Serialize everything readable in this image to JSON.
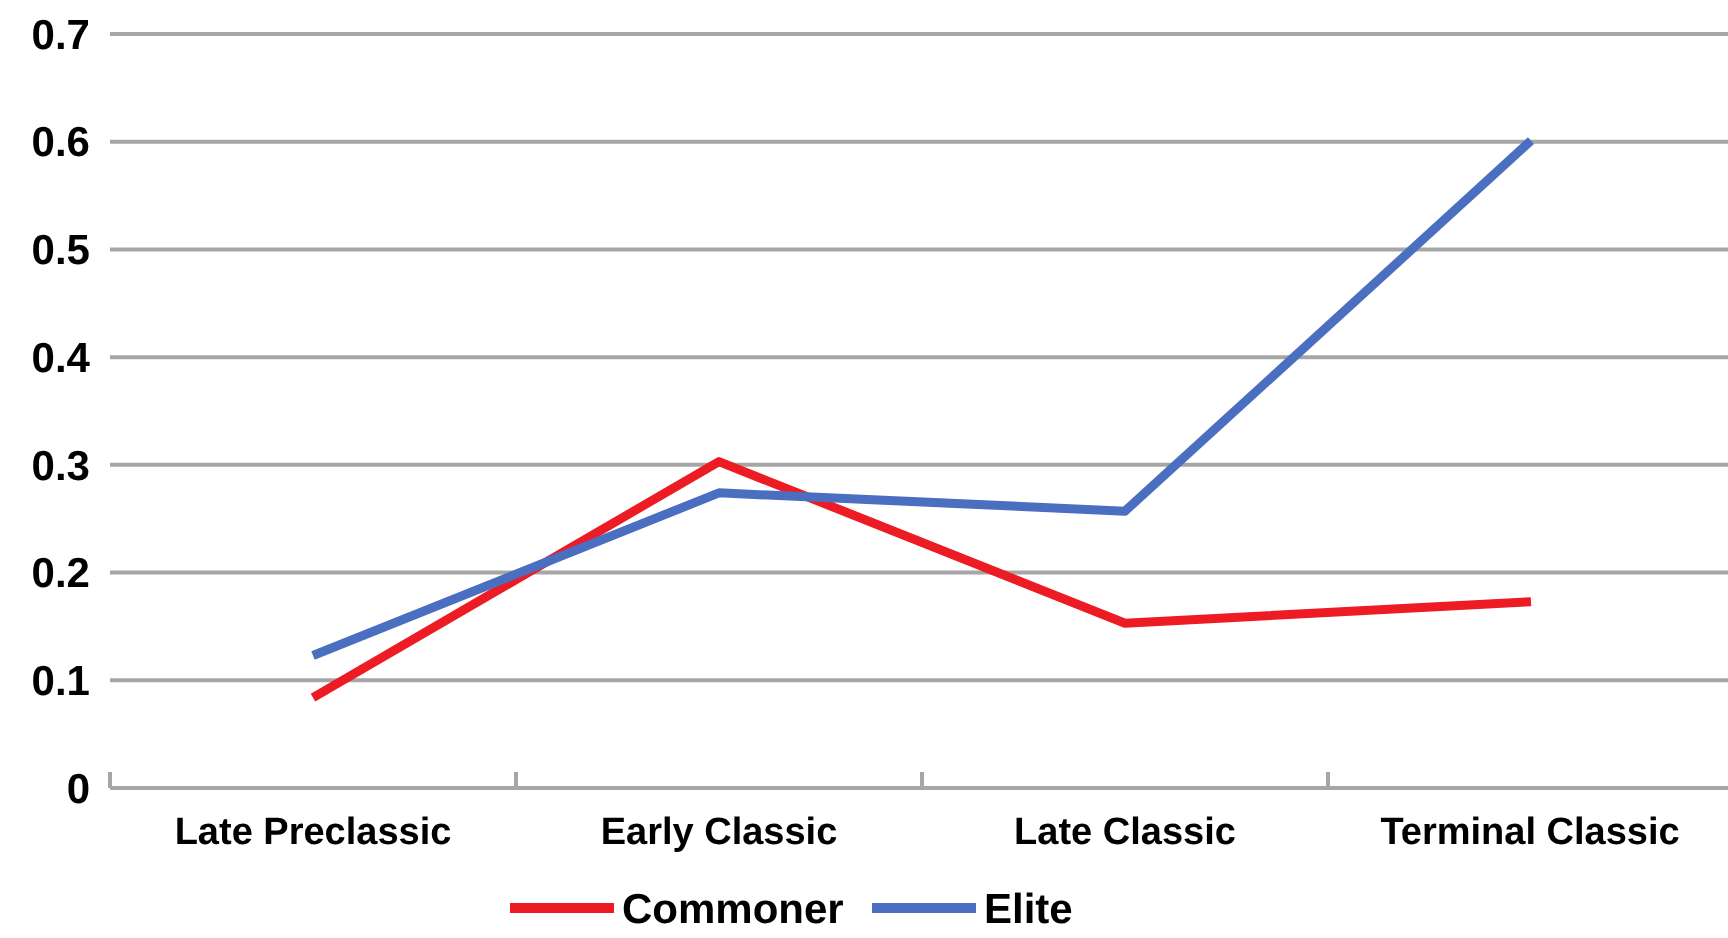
{
  "chart_data": {
    "type": "line",
    "categories": [
      "Late Preclassic",
      "Early Classic",
      "Late Classic",
      "Terminal Classic"
    ],
    "series": [
      {
        "name": "Commoner",
        "color": "#ed1c24",
        "values": [
          0.084,
          0.303,
          0.153,
          0.173
        ]
      },
      {
        "name": "Elite",
        "color": "#4a6ec0",
        "values": [
          0.123,
          0.274,
          0.257,
          0.601
        ]
      }
    ],
    "ylim": [
      0,
      0.7
    ],
    "yticks": [
      0,
      0.1,
      0.2,
      0.3,
      0.4,
      0.5,
      0.6,
      0.7
    ],
    "grid": "y",
    "legend": "bottom",
    "marker": "none"
  }
}
